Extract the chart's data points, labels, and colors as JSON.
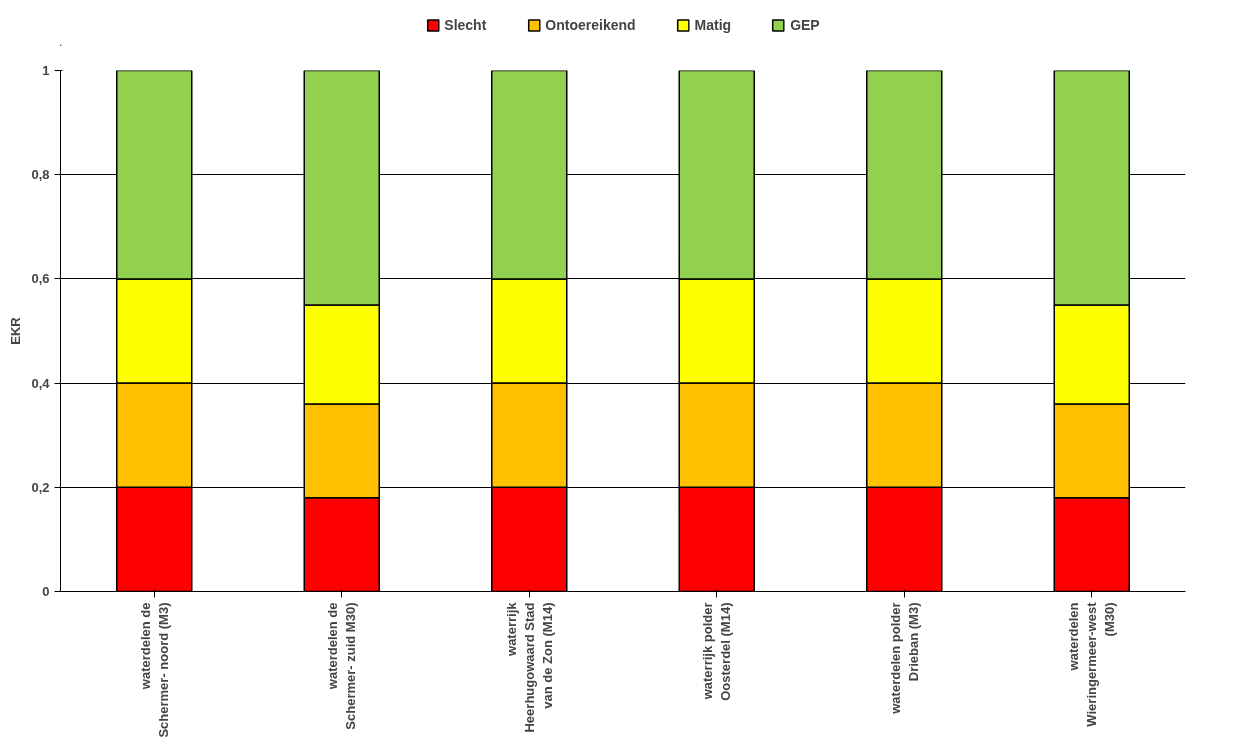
{
  "chart_data": {
    "type": "bar",
    "stacked": true,
    "ylabel": "EKR",
    "categories": [
      "waterdelen de\nSchermer- noord (M3)",
      "waterdelen de\nSchermer- zuid M30)",
      "waterrijk\nHeerhugowaard Stad\nvan de Zon (M14)",
      "waterrijk polder\nOosterdel (M14)",
      "waterdelen polder\nDrieban (M3)",
      "waterdelen\nWieringermeer-west\n(M30)"
    ],
    "series": [
      {
        "name": "Slecht",
        "color": "#ff0000",
        "values": [
          0.2,
          0.18,
          0.2,
          0.2,
          0.2,
          0.18
        ]
      },
      {
        "name": "Ontoereikend",
        "color": "#ffc000",
        "values": [
          0.2,
          0.18,
          0.2,
          0.2,
          0.2,
          0.18
        ]
      },
      {
        "name": "Matig",
        "color": "#ffff00",
        "values": [
          0.2,
          0.19,
          0.2,
          0.2,
          0.2,
          0.19
        ]
      },
      {
        "name": "GEP",
        "color": "#92d050",
        "values": [
          0.4,
          0.45,
          0.4,
          0.4,
          0.4,
          0.45
        ]
      }
    ],
    "ylim": [
      0,
      1
    ],
    "yticks": [
      0,
      {
        "value": 0.2,
        "label": "0,2"
      },
      {
        "value": 0.4,
        "label": "0,4"
      },
      {
        "value": 0.6,
        "label": "0,6"
      },
      {
        "value": 0.8,
        "label": "0,8"
      },
      1
    ],
    "grid": "y",
    "legend": "top"
  }
}
